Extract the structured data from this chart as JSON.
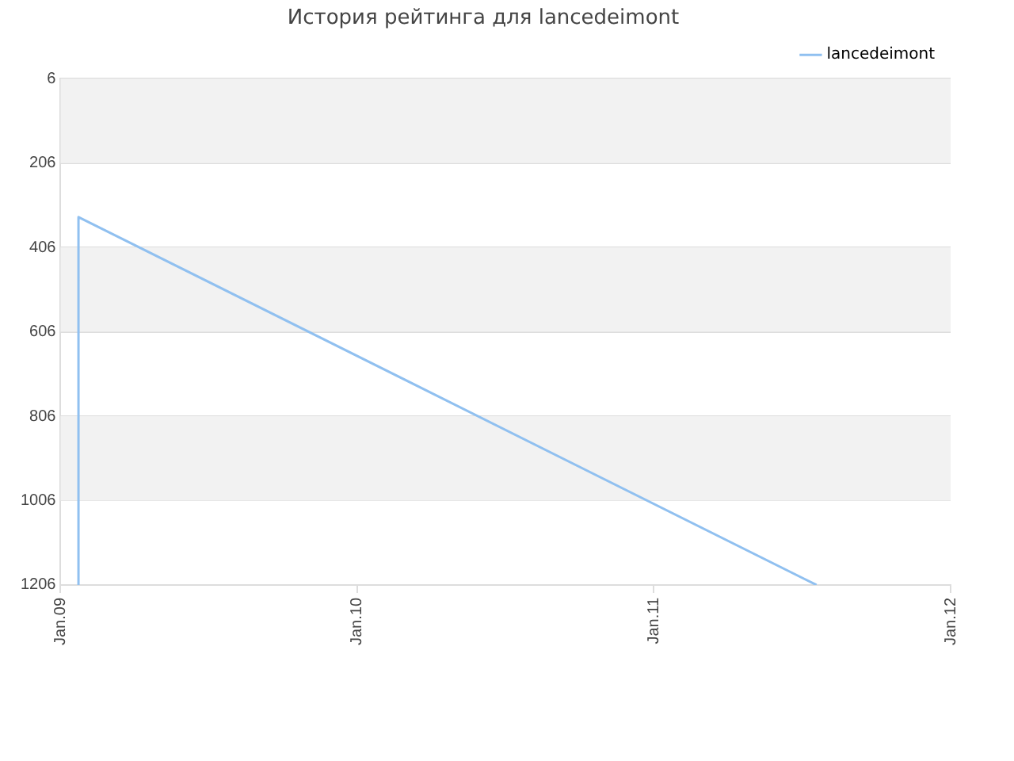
{
  "chart_data": {
    "type": "line",
    "title": "История рейтинга для lancedeimont",
    "x": [
      "2009-01-23",
      "2009-01-23",
      "2011-07-20"
    ],
    "series": [
      {
        "name": "lancedeimont",
        "color": "#90c0f0",
        "values": [
          1206,
          334,
          1206
        ]
      }
    ],
    "xlim": [
      "2009-01",
      "2012-01"
    ],
    "xticks": [
      {
        "value": "2009-01",
        "label": "Jan.09"
      },
      {
        "value": "2010-01",
        "label": "Jan.10"
      },
      {
        "value": "2011-01",
        "label": "Jan.11"
      },
      {
        "value": "2012-01",
        "label": "Jan.12"
      }
    ],
    "ylim": [
      1206,
      6
    ],
    "yticks": [
      6,
      206,
      406,
      606,
      806,
      1006,
      1206
    ],
    "grid": "y",
    "legend": "top right",
    "marker": "none",
    "line_style": "solid"
  }
}
